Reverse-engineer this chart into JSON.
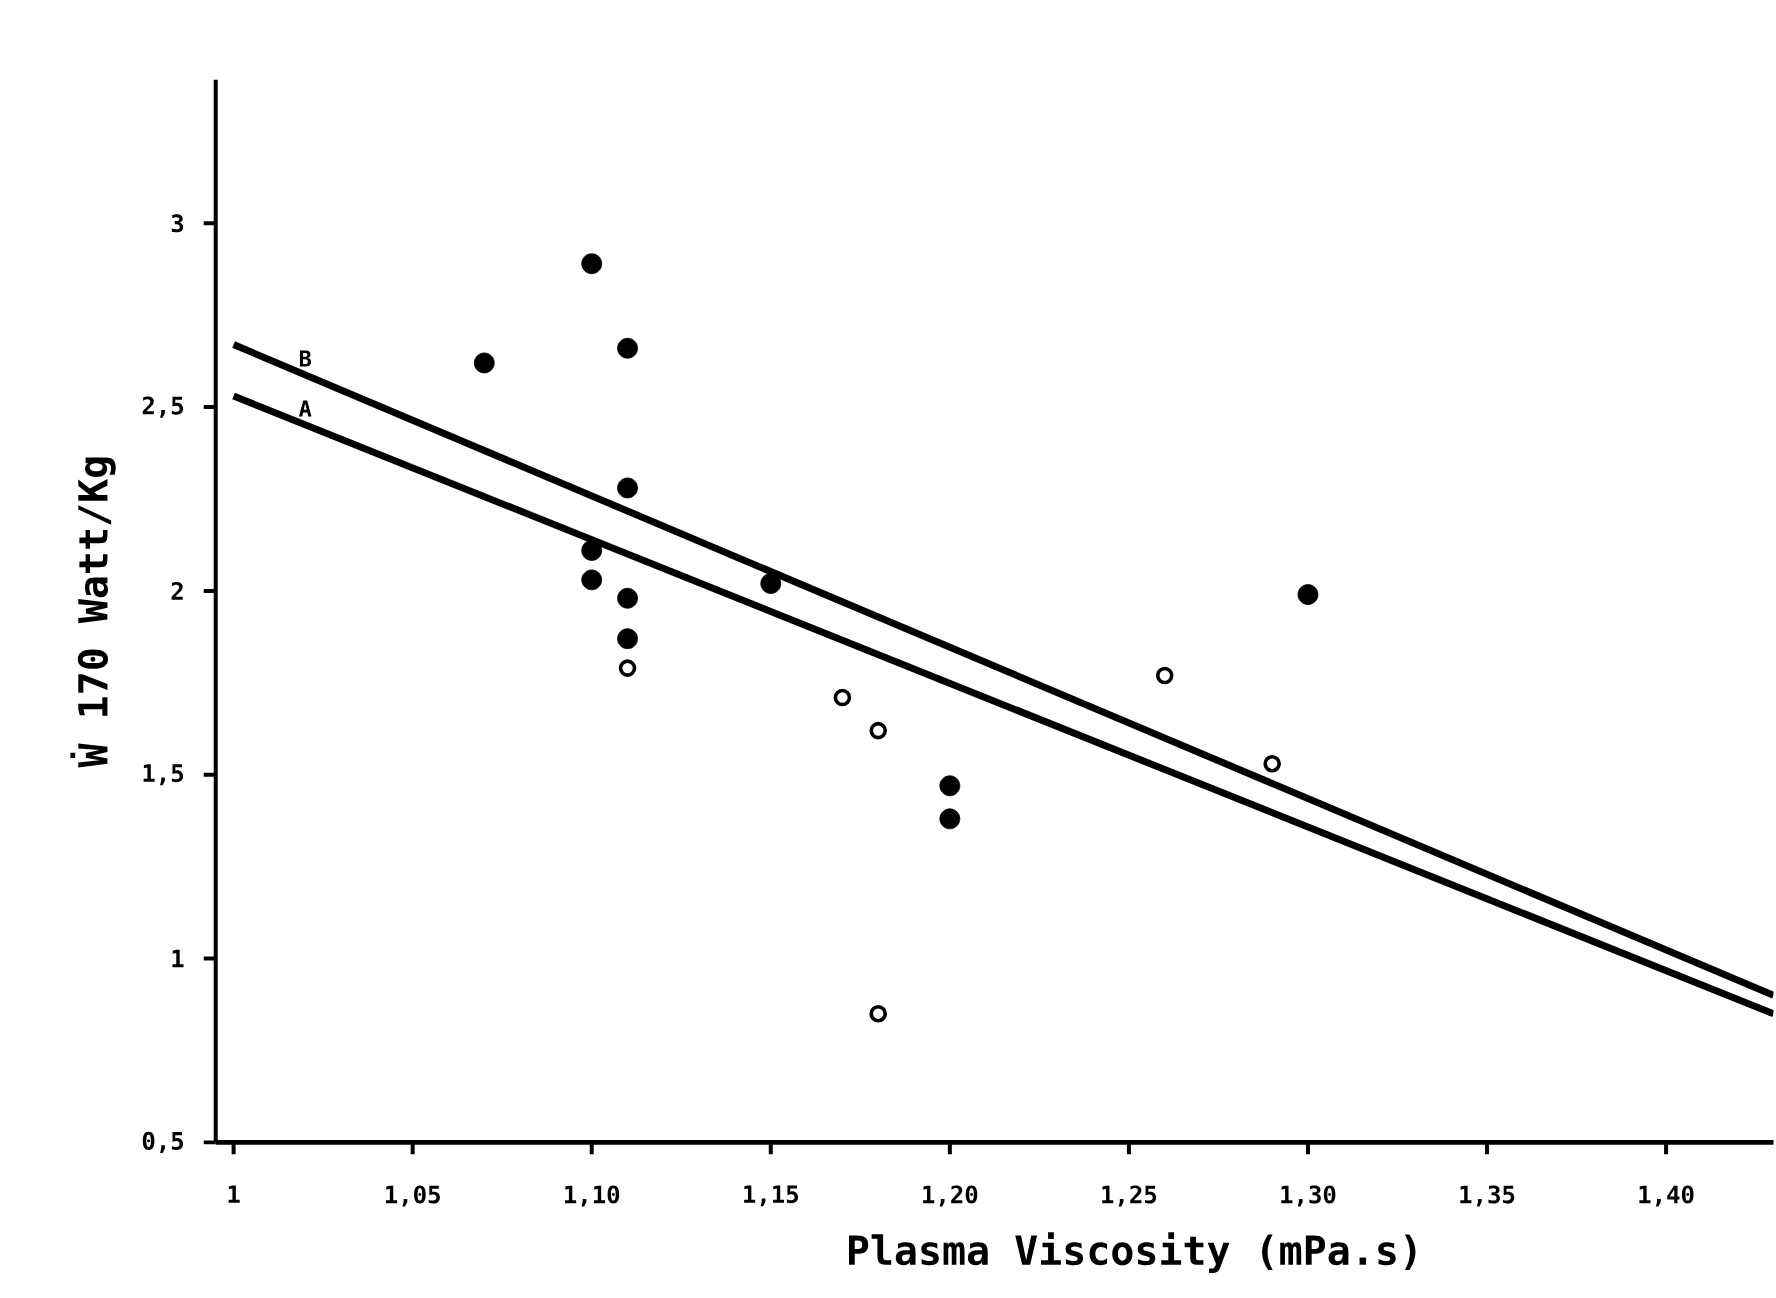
{
  "chart_data": {
    "type": "scatter",
    "xlabel": "Plasma Viscosity (mPa.s)",
    "ylabel": "Ẇ 170 Watt/Kg",
    "xlim": [
      0.995,
      1.43
    ],
    "ylim": [
      0.5,
      3.39
    ],
    "xticks": [
      1,
      {
        "value": 1.05,
        "label": "1,05"
      },
      {
        "value": 1.1,
        "label": "1,10"
      },
      {
        "value": 1.15,
        "label": "1,15"
      },
      {
        "value": 1.2,
        "label": "1,20"
      },
      {
        "value": 1.25,
        "label": "1,25"
      },
      {
        "value": 1.3,
        "label": "1,30"
      },
      {
        "value": 1.35,
        "label": "1,35"
      },
      {
        "value": 1.4,
        "label": "1,40"
      }
    ],
    "yticks": [
      {
        "value": 0.5,
        "label": "0,5"
      },
      1,
      {
        "value": 1.5,
        "label": "1,5"
      },
      2,
      {
        "value": 2.5,
        "label": "2,5"
      },
      3
    ],
    "grid": false,
    "series": [
      {
        "marker": "circle",
        "color": "#000000",
        "x": [
          1.07,
          1.1,
          1.11,
          1.11,
          1.1,
          1.1,
          1.11,
          1.11,
          1.15,
          1.2,
          1.2,
          1.3
        ],
        "values": [
          2.62,
          2.89,
          2.66,
          2.28,
          2.11,
          2.03,
          1.98,
          1.87,
          2.02,
          1.47,
          1.38,
          1.99
        ]
      },
      {
        "marker": "circle",
        "color": "#ffffff",
        "x": [
          1.11,
          1.17,
          1.18,
          1.18,
          1.26,
          1.29
        ],
        "values": [
          1.79,
          1.71,
          1.62,
          0.85,
          1.77,
          1.53
        ]
      },
      {
        "type": "line",
        "name": "B",
        "marker": "none",
        "color": "#000000",
        "x": [
          1.0,
          1.43
        ],
        "values": [
          2.67,
          0.9
        ]
      },
      {
        "type": "line",
        "name": "A",
        "marker": "none",
        "color": "#000000",
        "x": [
          1.0,
          1.43
        ],
        "values": [
          2.53,
          0.85
        ]
      }
    ]
  }
}
